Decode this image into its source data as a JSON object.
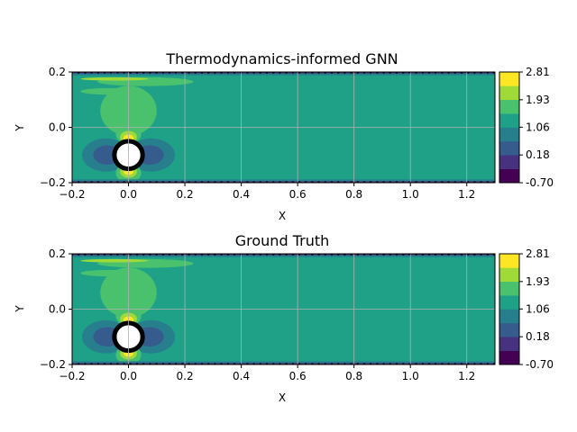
{
  "colors": {
    "levels": [
      "#440154",
      "#46327e",
      "#365c8d",
      "#277f8e",
      "#1fa187",
      "#4ac16d",
      "#a0da39",
      "#fde725"
    ],
    "frame": "#000000",
    "grid": "#b0b0b0",
    "cylinder_fill": "#ffffff",
    "cylinder_edge": "#000000"
  },
  "chart_data": [
    {
      "type": "contourf",
      "title": "Thermodynamics-informed GNN",
      "xlabel": "X",
      "ylabel": "Y",
      "xlim": [
        -0.2,
        1.3
      ],
      "ylim": [
        -0.2,
        0.2
      ],
      "x_ticks": [
        -0.2,
        0.0,
        0.2,
        0.4,
        0.6,
        0.8,
        1.0,
        1.2
      ],
      "x_tick_labels": [
        "−0.2",
        "0.0",
        "0.2",
        "0.4",
        "0.6",
        "0.8",
        "1.0",
        "1.2"
      ],
      "y_ticks": [
        -0.2,
        0.0,
        0.2
      ],
      "y_tick_labels": [
        "−0.2",
        "0.0",
        "0.2"
      ],
      "grid": true,
      "colorbar": {
        "min": -0.7,
        "max": 2.81,
        "levels": 8,
        "tick_values": [
          -0.7,
          0.18,
          1.06,
          1.93,
          2.81
        ],
        "tick_labels": [
          "-0.70",
          "0.18",
          "1.06",
          "1.93",
          "2.81"
        ]
      },
      "cylinder": {
        "x": 0.0,
        "y": -0.1,
        "r": 0.05
      },
      "background_level": 4,
      "regions": [
        {
          "shape": "ellipse",
          "cx": 0.0,
          "cy": 0.06,
          "rx": 0.1,
          "ry": 0.09,
          "level": 5
        },
        {
          "shape": "ellipse",
          "cx": 0.06,
          "cy": 0.165,
          "rx": 0.17,
          "ry": 0.016,
          "level": 5
        },
        {
          "shape": "ellipse",
          "cx": -0.07,
          "cy": 0.13,
          "rx": 0.1,
          "ry": 0.012,
          "level": 5
        },
        {
          "shape": "ellipse",
          "cx": -0.05,
          "cy": 0.175,
          "rx": 0.12,
          "ry": 0.006,
          "level": 6
        },
        {
          "shape": "ellipse",
          "cx": -0.08,
          "cy": -0.1,
          "rx": 0.085,
          "ry": 0.06,
          "level": 3
        },
        {
          "shape": "ellipse",
          "cx": 0.08,
          "cy": -0.1,
          "rx": 0.085,
          "ry": 0.06,
          "level": 3
        },
        {
          "shape": "ellipse",
          "cx": -0.075,
          "cy": -0.1,
          "rx": 0.05,
          "ry": 0.035,
          "level": 2
        },
        {
          "shape": "ellipse",
          "cx": 0.075,
          "cy": -0.1,
          "rx": 0.05,
          "ry": 0.035,
          "level": 2
        },
        {
          "shape": "ellipse",
          "cx": 0.0,
          "cy": -0.025,
          "rx": 0.045,
          "ry": 0.035,
          "level": 5
        },
        {
          "shape": "ellipse",
          "cx": 0.0,
          "cy": -0.035,
          "rx": 0.03,
          "ry": 0.022,
          "level": 6
        },
        {
          "shape": "ellipse",
          "cx": 0.0,
          "cy": -0.04,
          "rx": 0.018,
          "ry": 0.014,
          "level": 7
        },
        {
          "shape": "ellipse",
          "cx": 0.0,
          "cy": -0.165,
          "rx": 0.045,
          "ry": 0.035,
          "level": 5
        },
        {
          "shape": "ellipse",
          "cx": 0.0,
          "cy": -0.16,
          "rx": 0.03,
          "ry": 0.022,
          "level": 6
        },
        {
          "shape": "ellipse",
          "cx": 0.0,
          "cy": -0.158,
          "rx": 0.018,
          "ry": 0.014,
          "level": 7
        },
        {
          "shape": "rect",
          "x0": -0.2,
          "x1": 1.3,
          "y0": 0.188,
          "y1": 0.2,
          "level": 3
        },
        {
          "shape": "rect",
          "x0": -0.2,
          "x1": 1.3,
          "y0": -0.2,
          "y1": -0.188,
          "level": 3
        },
        {
          "shape": "rect",
          "x0": -0.2,
          "x1": 1.3,
          "y0": 0.195,
          "y1": 0.2,
          "level": 1
        },
        {
          "shape": "rect",
          "x0": -0.2,
          "x1": 1.3,
          "y0": -0.2,
          "y1": -0.195,
          "level": 1
        }
      ]
    },
    {
      "type": "contourf",
      "title": "Ground Truth",
      "xlabel": "X",
      "ylabel": "Y",
      "xlim": [
        -0.2,
        1.3
      ],
      "ylim": [
        -0.2,
        0.2
      ],
      "x_ticks": [
        -0.2,
        0.0,
        0.2,
        0.4,
        0.6,
        0.8,
        1.0,
        1.2
      ],
      "x_tick_labels": [
        "−0.2",
        "0.0",
        "0.2",
        "0.4",
        "0.6",
        "0.8",
        "1.0",
        "1.2"
      ],
      "y_ticks": [
        -0.2,
        0.0,
        0.2
      ],
      "y_tick_labels": [
        "−0.2",
        "0.0",
        "0.2"
      ],
      "grid": true,
      "colorbar": {
        "min": -0.7,
        "max": 2.81,
        "levels": 8,
        "tick_values": [
          -0.7,
          0.18,
          1.06,
          1.93,
          2.81
        ],
        "tick_labels": [
          "-0.70",
          "0.18",
          "1.06",
          "1.93",
          "2.81"
        ]
      },
      "cylinder": {
        "x": 0.0,
        "y": -0.1,
        "r": 0.05
      },
      "background_level": 4,
      "regions": [
        {
          "shape": "ellipse",
          "cx": 0.0,
          "cy": 0.06,
          "rx": 0.1,
          "ry": 0.09,
          "level": 5
        },
        {
          "shape": "ellipse",
          "cx": 0.06,
          "cy": 0.165,
          "rx": 0.17,
          "ry": 0.016,
          "level": 5
        },
        {
          "shape": "ellipse",
          "cx": -0.07,
          "cy": 0.13,
          "rx": 0.1,
          "ry": 0.012,
          "level": 5
        },
        {
          "shape": "ellipse",
          "cx": -0.05,
          "cy": 0.175,
          "rx": 0.12,
          "ry": 0.006,
          "level": 6
        },
        {
          "shape": "ellipse",
          "cx": -0.08,
          "cy": -0.1,
          "rx": 0.085,
          "ry": 0.06,
          "level": 3
        },
        {
          "shape": "ellipse",
          "cx": 0.08,
          "cy": -0.1,
          "rx": 0.085,
          "ry": 0.06,
          "level": 3
        },
        {
          "shape": "ellipse",
          "cx": -0.075,
          "cy": -0.1,
          "rx": 0.05,
          "ry": 0.035,
          "level": 2
        },
        {
          "shape": "ellipse",
          "cx": 0.075,
          "cy": -0.1,
          "rx": 0.05,
          "ry": 0.035,
          "level": 2
        },
        {
          "shape": "ellipse",
          "cx": 0.0,
          "cy": -0.025,
          "rx": 0.045,
          "ry": 0.035,
          "level": 5
        },
        {
          "shape": "ellipse",
          "cx": 0.0,
          "cy": -0.035,
          "rx": 0.03,
          "ry": 0.022,
          "level": 6
        },
        {
          "shape": "ellipse",
          "cx": 0.0,
          "cy": -0.04,
          "rx": 0.018,
          "ry": 0.014,
          "level": 7
        },
        {
          "shape": "ellipse",
          "cx": 0.0,
          "cy": -0.165,
          "rx": 0.045,
          "ry": 0.035,
          "level": 5
        },
        {
          "shape": "ellipse",
          "cx": 0.0,
          "cy": -0.16,
          "rx": 0.03,
          "ry": 0.022,
          "level": 6
        },
        {
          "shape": "ellipse",
          "cx": 0.0,
          "cy": -0.158,
          "rx": 0.018,
          "ry": 0.014,
          "level": 7
        },
        {
          "shape": "rect",
          "x0": -0.2,
          "x1": 1.3,
          "y0": 0.188,
          "y1": 0.2,
          "level": 3
        },
        {
          "shape": "rect",
          "x0": -0.2,
          "x1": 1.3,
          "y0": -0.2,
          "y1": -0.188,
          "level": 3
        },
        {
          "shape": "rect",
          "x0": -0.2,
          "x1": 1.3,
          "y0": 0.195,
          "y1": 0.2,
          "level": 1
        },
        {
          "shape": "rect",
          "x0": -0.2,
          "x1": 1.3,
          "y0": -0.2,
          "y1": -0.195,
          "level": 1
        }
      ]
    }
  ]
}
